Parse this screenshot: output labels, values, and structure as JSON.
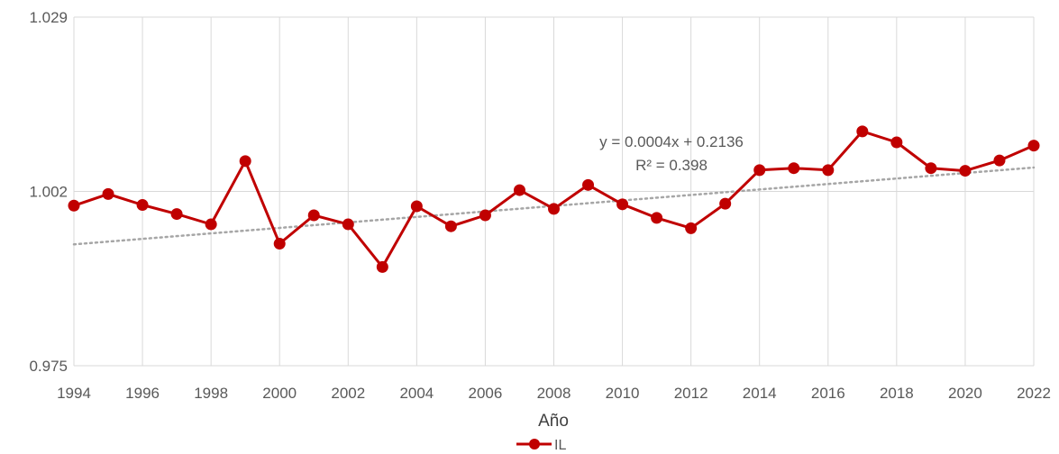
{
  "chart_data": {
    "type": "line",
    "xlabel": "Año",
    "ylabel": "",
    "x": [
      1994,
      1995,
      1996,
      1997,
      1998,
      1999,
      2000,
      2001,
      2002,
      2003,
      2004,
      2005,
      2006,
      2007,
      2008,
      2009,
      2010,
      2011,
      2012,
      2013,
      2014,
      2015,
      2016,
      2017,
      2018,
      2019,
      2020,
      2021,
      2022
    ],
    "xlim": [
      1994,
      2022
    ],
    "x_ticks": [
      "1994",
      "1996",
      "1998",
      "2000",
      "2002",
      "2004",
      "2006",
      "2008",
      "2010",
      "2012",
      "2014",
      "2016",
      "2018",
      "2020",
      "2022"
    ],
    "ylim": [
      0.975,
      1.029
    ],
    "y_ticks": [
      "0.975",
      "1.002",
      "1.029"
    ],
    "grid": true,
    "legend": "bottom",
    "series": [
      {
        "name": "IL",
        "color": "#C00000",
        "values": [
          0.9998,
          1.0016,
          0.9999,
          0.9985,
          0.9969,
          1.0067,
          0.9939,
          0.9983,
          0.9969,
          0.9903,
          0.9997,
          0.9966,
          0.9983,
          1.0022,
          0.9993,
          1.003,
          1.0,
          0.9979,
          0.9963,
          1.0001,
          1.0053,
          1.0056,
          1.0053,
          1.0113,
          1.0096,
          1.0056,
          1.0052,
          1.0068,
          1.0091
        ]
      }
    ],
    "trendline": {
      "color": "#A6A6A6",
      "style": "dotted",
      "start": [
        1994,
        0.9938
      ],
      "end": [
        2022,
        1.0057
      ],
      "equation": "y = 0.0004x + 0.2136",
      "r2": "R² = 0.398"
    }
  }
}
